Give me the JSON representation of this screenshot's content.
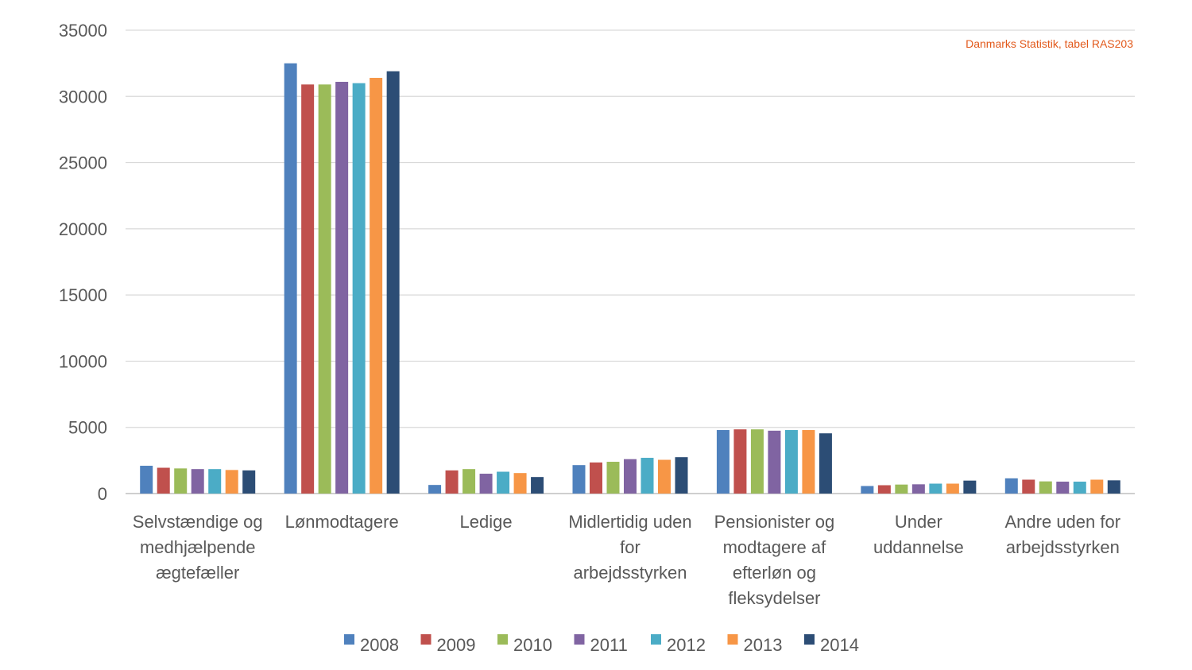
{
  "chart_data": {
    "type": "bar",
    "title": "",
    "xlabel": "",
    "ylabel": "",
    "annotation": "Danmarks Statistik, tabel RAS203",
    "ylim": [
      0,
      35000
    ],
    "yticks": [
      0,
      5000,
      10000,
      15000,
      20000,
      25000,
      30000,
      35000
    ],
    "grid": true,
    "legend_position": "bottom",
    "categories": [
      [
        "Selvstændige og",
        "medhjælpende",
        "ægtefæller"
      ],
      [
        "Lønmodtagere"
      ],
      [
        "Ledige"
      ],
      [
        "Midlertidig uden",
        "for",
        "arbejdsstyrken"
      ],
      [
        "Pensionister og",
        "modtagere af",
        "efterløn og",
        "fleksydelser"
      ],
      [
        "Under",
        "uddannelse"
      ],
      [
        "Andre uden for",
        "arbejdsstyrken"
      ]
    ],
    "series": [
      {
        "name": "2008",
        "color": "#4f81bd",
        "values": [
          2100,
          32500,
          650,
          2150,
          4800,
          570,
          1150
        ]
      },
      {
        "name": "2009",
        "color": "#c0504d",
        "values": [
          1950,
          30900,
          1750,
          2350,
          4850,
          630,
          1050
        ]
      },
      {
        "name": "2010",
        "color": "#9bbb59",
        "values": [
          1900,
          30900,
          1850,
          2400,
          4850,
          680,
          920
        ]
      },
      {
        "name": "2011",
        "color": "#8064a2",
        "values": [
          1850,
          31100,
          1500,
          2600,
          4750,
          700,
          900
        ]
      },
      {
        "name": "2012",
        "color": "#4bacc6",
        "values": [
          1850,
          31000,
          1650,
          2700,
          4800,
          750,
          900
        ]
      },
      {
        "name": "2013",
        "color": "#f79646",
        "values": [
          1780,
          31400,
          1550,
          2550,
          4800,
          750,
          1050
        ]
      },
      {
        "name": "2014",
        "color": "#2c4d75",
        "values": [
          1750,
          31900,
          1250,
          2750,
          4550,
          980,
          1000
        ]
      }
    ]
  }
}
